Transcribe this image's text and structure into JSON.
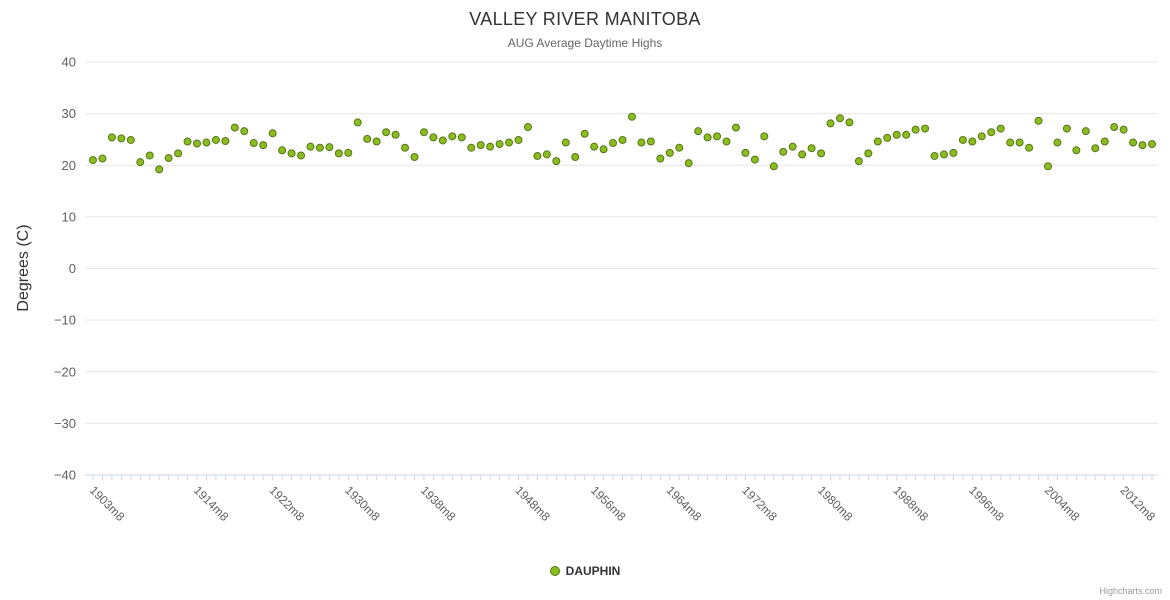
{
  "credit": "Highcharts.com",
  "colors": {
    "point_fill": "#8bbc21",
    "point_stroke": "#567715",
    "grid": "#e6e6e6",
    "axis_line": "#ccd6eb",
    "tick_label": "#606060",
    "title": "#333333",
    "subtitle": "#666666"
  },
  "chart_data": {
    "type": "scatter",
    "title": "VALLEY RIVER MANITOBA",
    "subtitle": "AUG Average Daytime Highs",
    "ylabel": "Degrees (C)",
    "xlabel": "",
    "ylim": [
      -40,
      40
    ],
    "grid": true,
    "legend_position": "bottom",
    "y_ticks": [
      {
        "v": 40,
        "label": "40"
      },
      {
        "v": 30,
        "label": "30"
      },
      {
        "v": 20,
        "label": "20"
      },
      {
        "v": 10,
        "label": "10"
      },
      {
        "v": 0,
        "label": "0"
      },
      {
        "v": -10,
        "label": "−10"
      },
      {
        "v": -20,
        "label": "−20"
      },
      {
        "v": -30,
        "label": "−30"
      },
      {
        "v": -40,
        "label": "−40"
      }
    ],
    "x_ticks": [
      {
        "year": 1903,
        "label": "1903m8"
      },
      {
        "year": 1914,
        "label": "1914m8"
      },
      {
        "year": 1922,
        "label": "1922m8"
      },
      {
        "year": 1930,
        "label": "1930m8"
      },
      {
        "year": 1938,
        "label": "1938m8"
      },
      {
        "year": 1948,
        "label": "1948m8"
      },
      {
        "year": 1956,
        "label": "1956m8"
      },
      {
        "year": 1964,
        "label": "1964m8"
      },
      {
        "year": 1972,
        "label": "1972m8"
      },
      {
        "year": 1980,
        "label": "1980m8"
      },
      {
        "year": 1988,
        "label": "1988m8"
      },
      {
        "year": 1996,
        "label": "1996m8"
      },
      {
        "year": 2004,
        "label": "2004m8"
      },
      {
        "year": 2012,
        "label": "2012m8"
      }
    ],
    "series": [
      {
        "name": "DAUPHIN",
        "points": [
          [
            1903,
            21.0
          ],
          [
            1904,
            21.3
          ],
          [
            1905,
            25.4
          ],
          [
            1906,
            25.2
          ],
          [
            1907,
            24.9
          ],
          [
            1908,
            20.6
          ],
          [
            1909,
            21.9
          ],
          [
            1910,
            19.2
          ],
          [
            1911,
            21.4
          ],
          [
            1912,
            22.3
          ],
          [
            1913,
            24.6
          ],
          [
            1914,
            24.2
          ],
          [
            1915,
            24.4
          ],
          [
            1916,
            24.9
          ],
          [
            1917,
            24.7
          ],
          [
            1918,
            27.3
          ],
          [
            1919,
            26.6
          ],
          [
            1920,
            24.3
          ],
          [
            1921,
            23.9
          ],
          [
            1922,
            26.2
          ],
          [
            1923,
            22.9
          ],
          [
            1924,
            22.3
          ],
          [
            1925,
            21.9
          ],
          [
            1926,
            23.6
          ],
          [
            1927,
            23.4
          ],
          [
            1928,
            23.5
          ],
          [
            1929,
            22.3
          ],
          [
            1930,
            22.4
          ],
          [
            1931,
            28.3
          ],
          [
            1932,
            25.1
          ],
          [
            1933,
            24.6
          ],
          [
            1934,
            26.4
          ],
          [
            1935,
            25.9
          ],
          [
            1936,
            23.4
          ],
          [
            1937,
            21.6
          ],
          [
            1938,
            26.4
          ],
          [
            1939,
            25.4
          ],
          [
            1940,
            24.8
          ],
          [
            1941,
            25.6
          ],
          [
            1942,
            25.4
          ],
          [
            1943,
            23.4
          ],
          [
            1944,
            23.9
          ],
          [
            1945,
            23.6
          ],
          [
            1946,
            24.1
          ],
          [
            1947,
            24.4
          ],
          [
            1948,
            24.9
          ],
          [
            1949,
            27.4
          ],
          [
            1950,
            21.8
          ],
          [
            1951,
            22.1
          ],
          [
            1952,
            20.8
          ],
          [
            1953,
            24.4
          ],
          [
            1954,
            21.6
          ],
          [
            1955,
            26.1
          ],
          [
            1956,
            23.6
          ],
          [
            1957,
            23.1
          ],
          [
            1958,
            24.3
          ],
          [
            1959,
            24.9
          ],
          [
            1960,
            29.4
          ],
          [
            1961,
            24.4
          ],
          [
            1962,
            24.6
          ],
          [
            1963,
            21.3
          ],
          [
            1964,
            22.4
          ],
          [
            1965,
            23.4
          ],
          [
            1966,
            20.4
          ],
          [
            1967,
            26.6
          ],
          [
            1968,
            25.4
          ],
          [
            1969,
            25.6
          ],
          [
            1970,
            24.6
          ],
          [
            1971,
            27.3
          ],
          [
            1972,
            22.4
          ],
          [
            1973,
            21.1
          ],
          [
            1974,
            25.6
          ],
          [
            1975,
            19.8
          ],
          [
            1976,
            22.6
          ],
          [
            1977,
            23.6
          ],
          [
            1978,
            22.1
          ],
          [
            1979,
            23.3
          ],
          [
            1980,
            22.3
          ],
          [
            1981,
            28.1
          ],
          [
            1982,
            29.1
          ],
          [
            1983,
            28.3
          ],
          [
            1984,
            20.8
          ],
          [
            1985,
            22.3
          ],
          [
            1986,
            24.6
          ],
          [
            1987,
            25.3
          ],
          [
            1988,
            25.9
          ],
          [
            1989,
            25.9
          ],
          [
            1990,
            26.9
          ],
          [
            1991,
            27.1
          ],
          [
            1992,
            21.8
          ],
          [
            1993,
            22.1
          ],
          [
            1994,
            22.4
          ],
          [
            1995,
            24.9
          ],
          [
            1996,
            24.6
          ],
          [
            1997,
            25.6
          ],
          [
            1998,
            26.4
          ],
          [
            1999,
            27.1
          ],
          [
            2000,
            24.4
          ],
          [
            2001,
            24.4
          ],
          [
            2002,
            23.4
          ],
          [
            2003,
            28.6
          ],
          [
            2004,
            19.8
          ],
          [
            2005,
            24.4
          ],
          [
            2006,
            27.1
          ],
          [
            2007,
            22.9
          ],
          [
            2008,
            26.6
          ],
          [
            2009,
            23.3
          ],
          [
            2010,
            24.6
          ],
          [
            2011,
            27.4
          ],
          [
            2012,
            26.9
          ],
          [
            2013,
            24.4
          ],
          [
            2014,
            23.9
          ],
          [
            2015,
            24.1
          ]
        ]
      }
    ]
  }
}
